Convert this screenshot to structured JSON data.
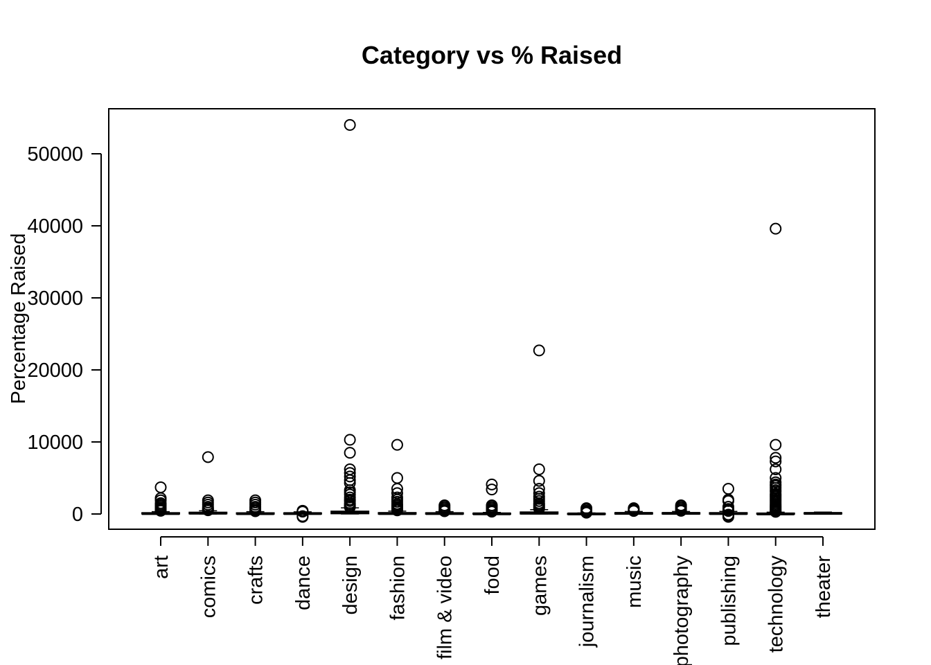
{
  "chart_data": {
    "type": "boxplot",
    "title": "Category vs % Raised",
    "xlabel": "",
    "ylabel": "Percentage Raised",
    "ylim": [
      -2000,
      56000
    ],
    "yticks": [
      0,
      10000,
      20000,
      30000,
      40000,
      50000
    ],
    "ytick_labels": [
      "0",
      "10000",
      "20000",
      "30000",
      "40000",
      "50000"
    ],
    "categories": [
      "art",
      "comics",
      "crafts",
      "dance",
      "design",
      "fashion",
      "film & video",
      "food",
      "games",
      "journalism",
      "music",
      "photography",
      "publishing",
      "technology",
      "theater"
    ],
    "boxes": [
      {
        "q1": 20,
        "median": 60,
        "q3": 150,
        "whisker_low": 0,
        "whisker_high": 320
      },
      {
        "q1": 50,
        "median": 110,
        "q3": 220,
        "whisker_low": 0,
        "whisker_high": 450
      },
      {
        "q1": 10,
        "median": 50,
        "q3": 140,
        "whisker_low": 0,
        "whisker_high": 320
      },
      {
        "q1": 10,
        "median": 60,
        "q3": 130,
        "whisker_low": 0,
        "whisker_high": 300
      },
      {
        "q1": 60,
        "median": 180,
        "q3": 370,
        "whisker_low": 0,
        "whisker_high": 850
      },
      {
        "q1": 10,
        "median": 60,
        "q3": 170,
        "whisker_low": 0,
        "whisker_high": 400
      },
      {
        "q1": 10,
        "median": 60,
        "q3": 140,
        "whisker_low": 0,
        "whisker_high": 320
      },
      {
        "q1": 0,
        "median": 20,
        "q3": 90,
        "whisker_low": 0,
        "whisker_high": 220
      },
      {
        "q1": 30,
        "median": 110,
        "q3": 260,
        "whisker_low": 0,
        "whisker_high": 600
      },
      {
        "q1": 0,
        "median": 10,
        "q3": 60,
        "whisker_low": 0,
        "whisker_high": 150
      },
      {
        "q1": 20,
        "median": 80,
        "q3": 160,
        "whisker_low": 0,
        "whisker_high": 350
      },
      {
        "q1": 20,
        "median": 80,
        "q3": 160,
        "whisker_low": 0,
        "whisker_high": 350
      },
      {
        "q1": 10,
        "median": 60,
        "q3": 160,
        "whisker_low": 0,
        "whisker_high": 360
      },
      {
        "q1": 0,
        "median": 10,
        "q3": 100,
        "whisker_low": 0,
        "whisker_high": 250
      },
      {
        "q1": 30,
        "median": 90,
        "q3": 150,
        "whisker_low": 0,
        "whisker_high": 260
      }
    ],
    "outliers": [
      [
        3700,
        2200,
        1900,
        1500,
        1300,
        1100,
        900,
        700,
        600,
        500,
        450
      ],
      [
        7900,
        1900,
        1600,
        1300,
        1000,
        800,
        700,
        600,
        520
      ],
      [
        1900,
        1600,
        1300,
        1000,
        800,
        600,
        450,
        380
      ],
      [
        450,
        380,
        330,
        -300,
        -400
      ],
      [
        54000,
        10300,
        8500,
        6200,
        5700,
        5200,
        4700,
        4300,
        3300,
        3000,
        2700,
        2300,
        2000,
        1800,
        1500,
        1300,
        1100,
        950
      ],
      [
        9600,
        5000,
        3500,
        2900,
        2300,
        2000,
        1700,
        1400,
        1200,
        1000,
        800,
        650,
        500
      ],
      [
        1200,
        1000,
        800,
        600,
        450,
        380
      ],
      [
        4100,
        3400,
        1200,
        1000,
        800,
        600,
        450,
        320
      ],
      [
        22700,
        6200,
        4600,
        3500,
        2900,
        2400,
        2100,
        1800,
        1500,
        1300,
        1100,
        900,
        750
      ],
      [
        800,
        650,
        450,
        300,
        220,
        180
      ],
      [
        800,
        650,
        500,
        420
      ],
      [
        1200,
        1000,
        800,
        600,
        450
      ],
      [
        3500,
        2000,
        1800,
        1000,
        700,
        500,
        420,
        -100,
        -250,
        -400
      ],
      [
        39600,
        9600,
        7800,
        7300,
        6200,
        5000,
        4400,
        4100,
        3900,
        3600,
        3300,
        3100,
        2800,
        2600,
        2400,
        2200,
        2000,
        1800,
        1600,
        1400,
        1200,
        1050,
        900,
        750,
        600,
        450,
        350,
        300
      ],
      []
    ]
  }
}
